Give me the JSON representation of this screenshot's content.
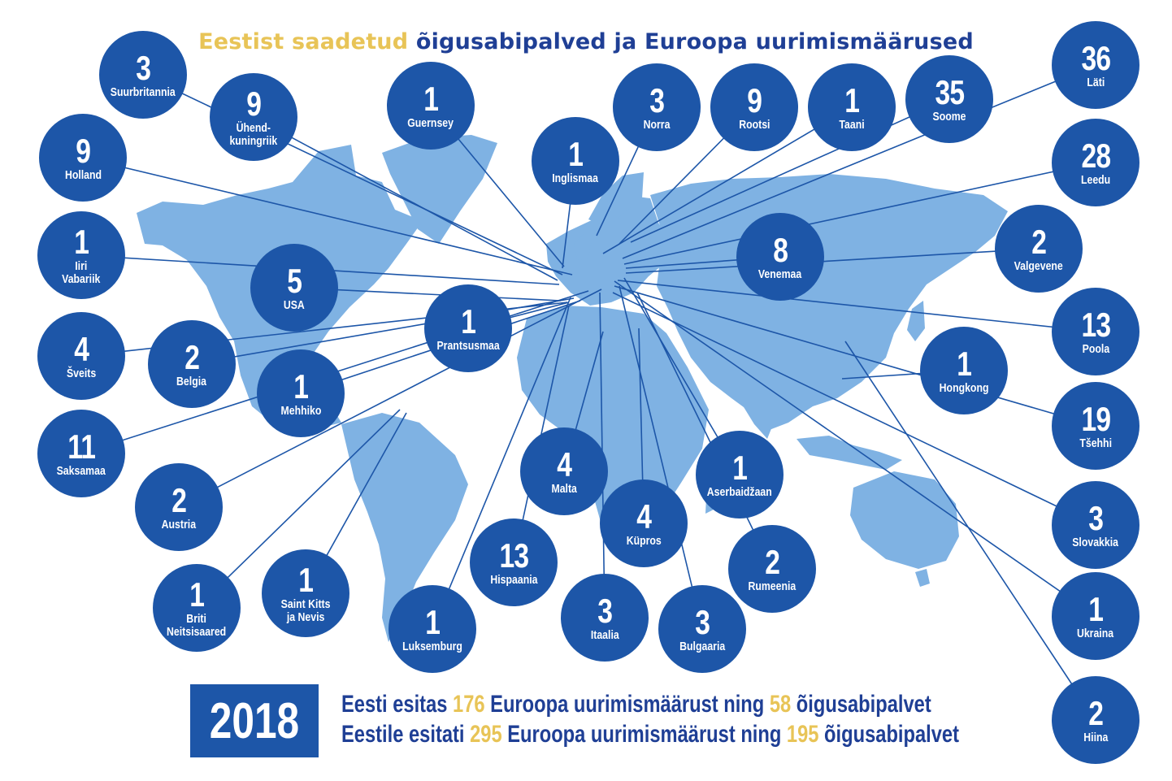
{
  "title": {
    "highlight": "Eestist saadetud",
    "rest": " õigusabipalved ja Euroopa uurimismäärused"
  },
  "colors": {
    "bubble": "#1d56a8",
    "map": "#7fb2e3",
    "line": "#1d56a8",
    "title_highlight": "#e8c457",
    "title_text": "#1f3f95"
  },
  "countries": [
    {
      "count": "3",
      "name": "Suurbritannia"
    },
    {
      "count": "9",
      "name": "Ühend-\nkuningriik"
    },
    {
      "count": "1",
      "name": "Guernsey"
    },
    {
      "count": "3",
      "name": "Norra"
    },
    {
      "count": "9",
      "name": "Rootsi"
    },
    {
      "count": "1",
      "name": "Taani"
    },
    {
      "count": "35",
      "name": "Soome"
    },
    {
      "count": "36",
      "name": "Läti"
    },
    {
      "count": "9",
      "name": "Holland"
    },
    {
      "count": "1",
      "name": "Inglismaa"
    },
    {
      "count": "28",
      "name": "Leedu"
    },
    {
      "count": "1",
      "name": "Iiri\nVabariik"
    },
    {
      "count": "8",
      "name": "Venemaa"
    },
    {
      "count": "2",
      "name": "Valgevene"
    },
    {
      "count": "5",
      "name": "USA"
    },
    {
      "count": "1",
      "name": "Prantsusmaa"
    },
    {
      "count": "13",
      "name": "Poola"
    },
    {
      "count": "4",
      "name": "Šveits"
    },
    {
      "count": "2",
      "name": "Belgia"
    },
    {
      "count": "1",
      "name": "Mehhiko"
    },
    {
      "count": "1",
      "name": "Hongkong"
    },
    {
      "count": "19",
      "name": "Tšehhi"
    },
    {
      "count": "11",
      "name": "Saksamaa"
    },
    {
      "count": "4",
      "name": "Malta"
    },
    {
      "count": "1",
      "name": "Aserbaidžaan"
    },
    {
      "count": "2",
      "name": "Austria"
    },
    {
      "count": "4",
      "name": "Küpros"
    },
    {
      "count": "3",
      "name": "Slovakkia"
    },
    {
      "count": "13",
      "name": "Hispaania"
    },
    {
      "count": "2",
      "name": "Rumeenia"
    },
    {
      "count": "1",
      "name": "Briti\nNeitsisaared"
    },
    {
      "count": "1",
      "name": "Saint Kitts\nja Nevis"
    },
    {
      "count": "1",
      "name": "Luksemburg"
    },
    {
      "count": "3",
      "name": "Itaalia"
    },
    {
      "count": "3",
      "name": "Bulgaaria"
    },
    {
      "count": "1",
      "name": "Ukraina"
    },
    {
      "count": "2",
      "name": "Hiina"
    }
  ],
  "year": "2018",
  "summary": {
    "line1": {
      "a": "Eesti esitas ",
      "n1": "176",
      "b": " Euroopa uurimismäärust ning ",
      "n2": "58",
      "c": " õigusabipalvet"
    },
    "line2": {
      "a": "Eestile esitati ",
      "n1": "295",
      "b": " Euroopa uurimismäärust ning ",
      "n2": "195",
      "c": " õigusabipalvet"
    }
  }
}
